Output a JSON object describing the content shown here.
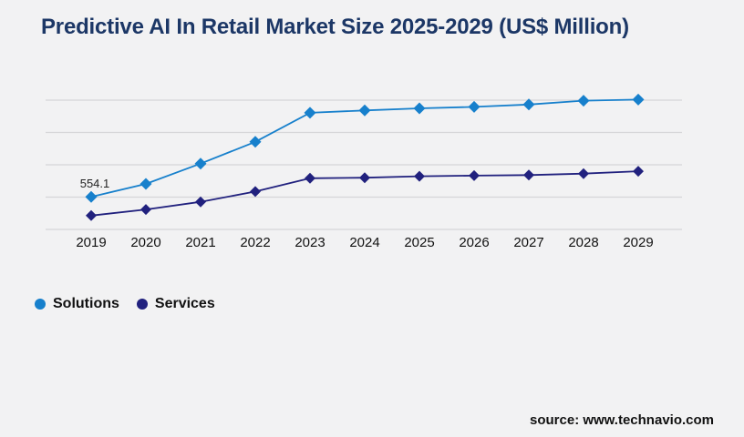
{
  "title": "Predictive AI In Retail Market Size 2025-2029 (US$ Million)",
  "source_note": "source: www.technavio.com",
  "colors": {
    "background": "#f2f2f3",
    "title": "#1c3766",
    "gridline": "#d6d6d8",
    "solutions": "#1780cc",
    "services": "#21217e",
    "axis_label": "#111111",
    "data_label": "#222222"
  },
  "legend": {
    "items": [
      {
        "label": "Solutions",
        "color": "#1780cc"
      },
      {
        "label": "Services",
        "color": "#21217e"
      }
    ]
  },
  "chart_data": {
    "type": "line",
    "title": "Predictive AI In Retail Market Size 2025-2029 (US$ Million)",
    "xlabel": "",
    "ylabel": "",
    "categories": [
      "2019",
      "2020",
      "2021",
      "2022",
      "2023",
      "2024",
      "2025",
      "2026",
      "2027",
      "2028",
      "2029"
    ],
    "series": [
      {
        "name": "Solutions",
        "color": "#1780cc",
        "values": [
          554.1,
          775,
          1120,
          1490,
          1985,
          2025,
          2060,
          2085,
          2125,
          2190,
          2210
        ]
      },
      {
        "name": "Services",
        "color": "#21217e",
        "values": [
          235,
          340,
          470,
          645,
          870,
          880,
          905,
          915,
          925,
          950,
          990
        ]
      }
    ],
    "annotations": [
      {
        "series": "Solutions",
        "category": "2019",
        "label": "554.1"
      }
    ],
    "ylim": [
      0,
      2200
    ],
    "gridline_values": [
      0,
      550,
      1100,
      1650,
      2200
    ],
    "grid": true,
    "marker": "diamond",
    "legend_position": "bottom-left",
    "y_axis_labels_shown": false,
    "note": "only the 554.1 data label is displayed on the chart; other values estimated from gridlines"
  }
}
